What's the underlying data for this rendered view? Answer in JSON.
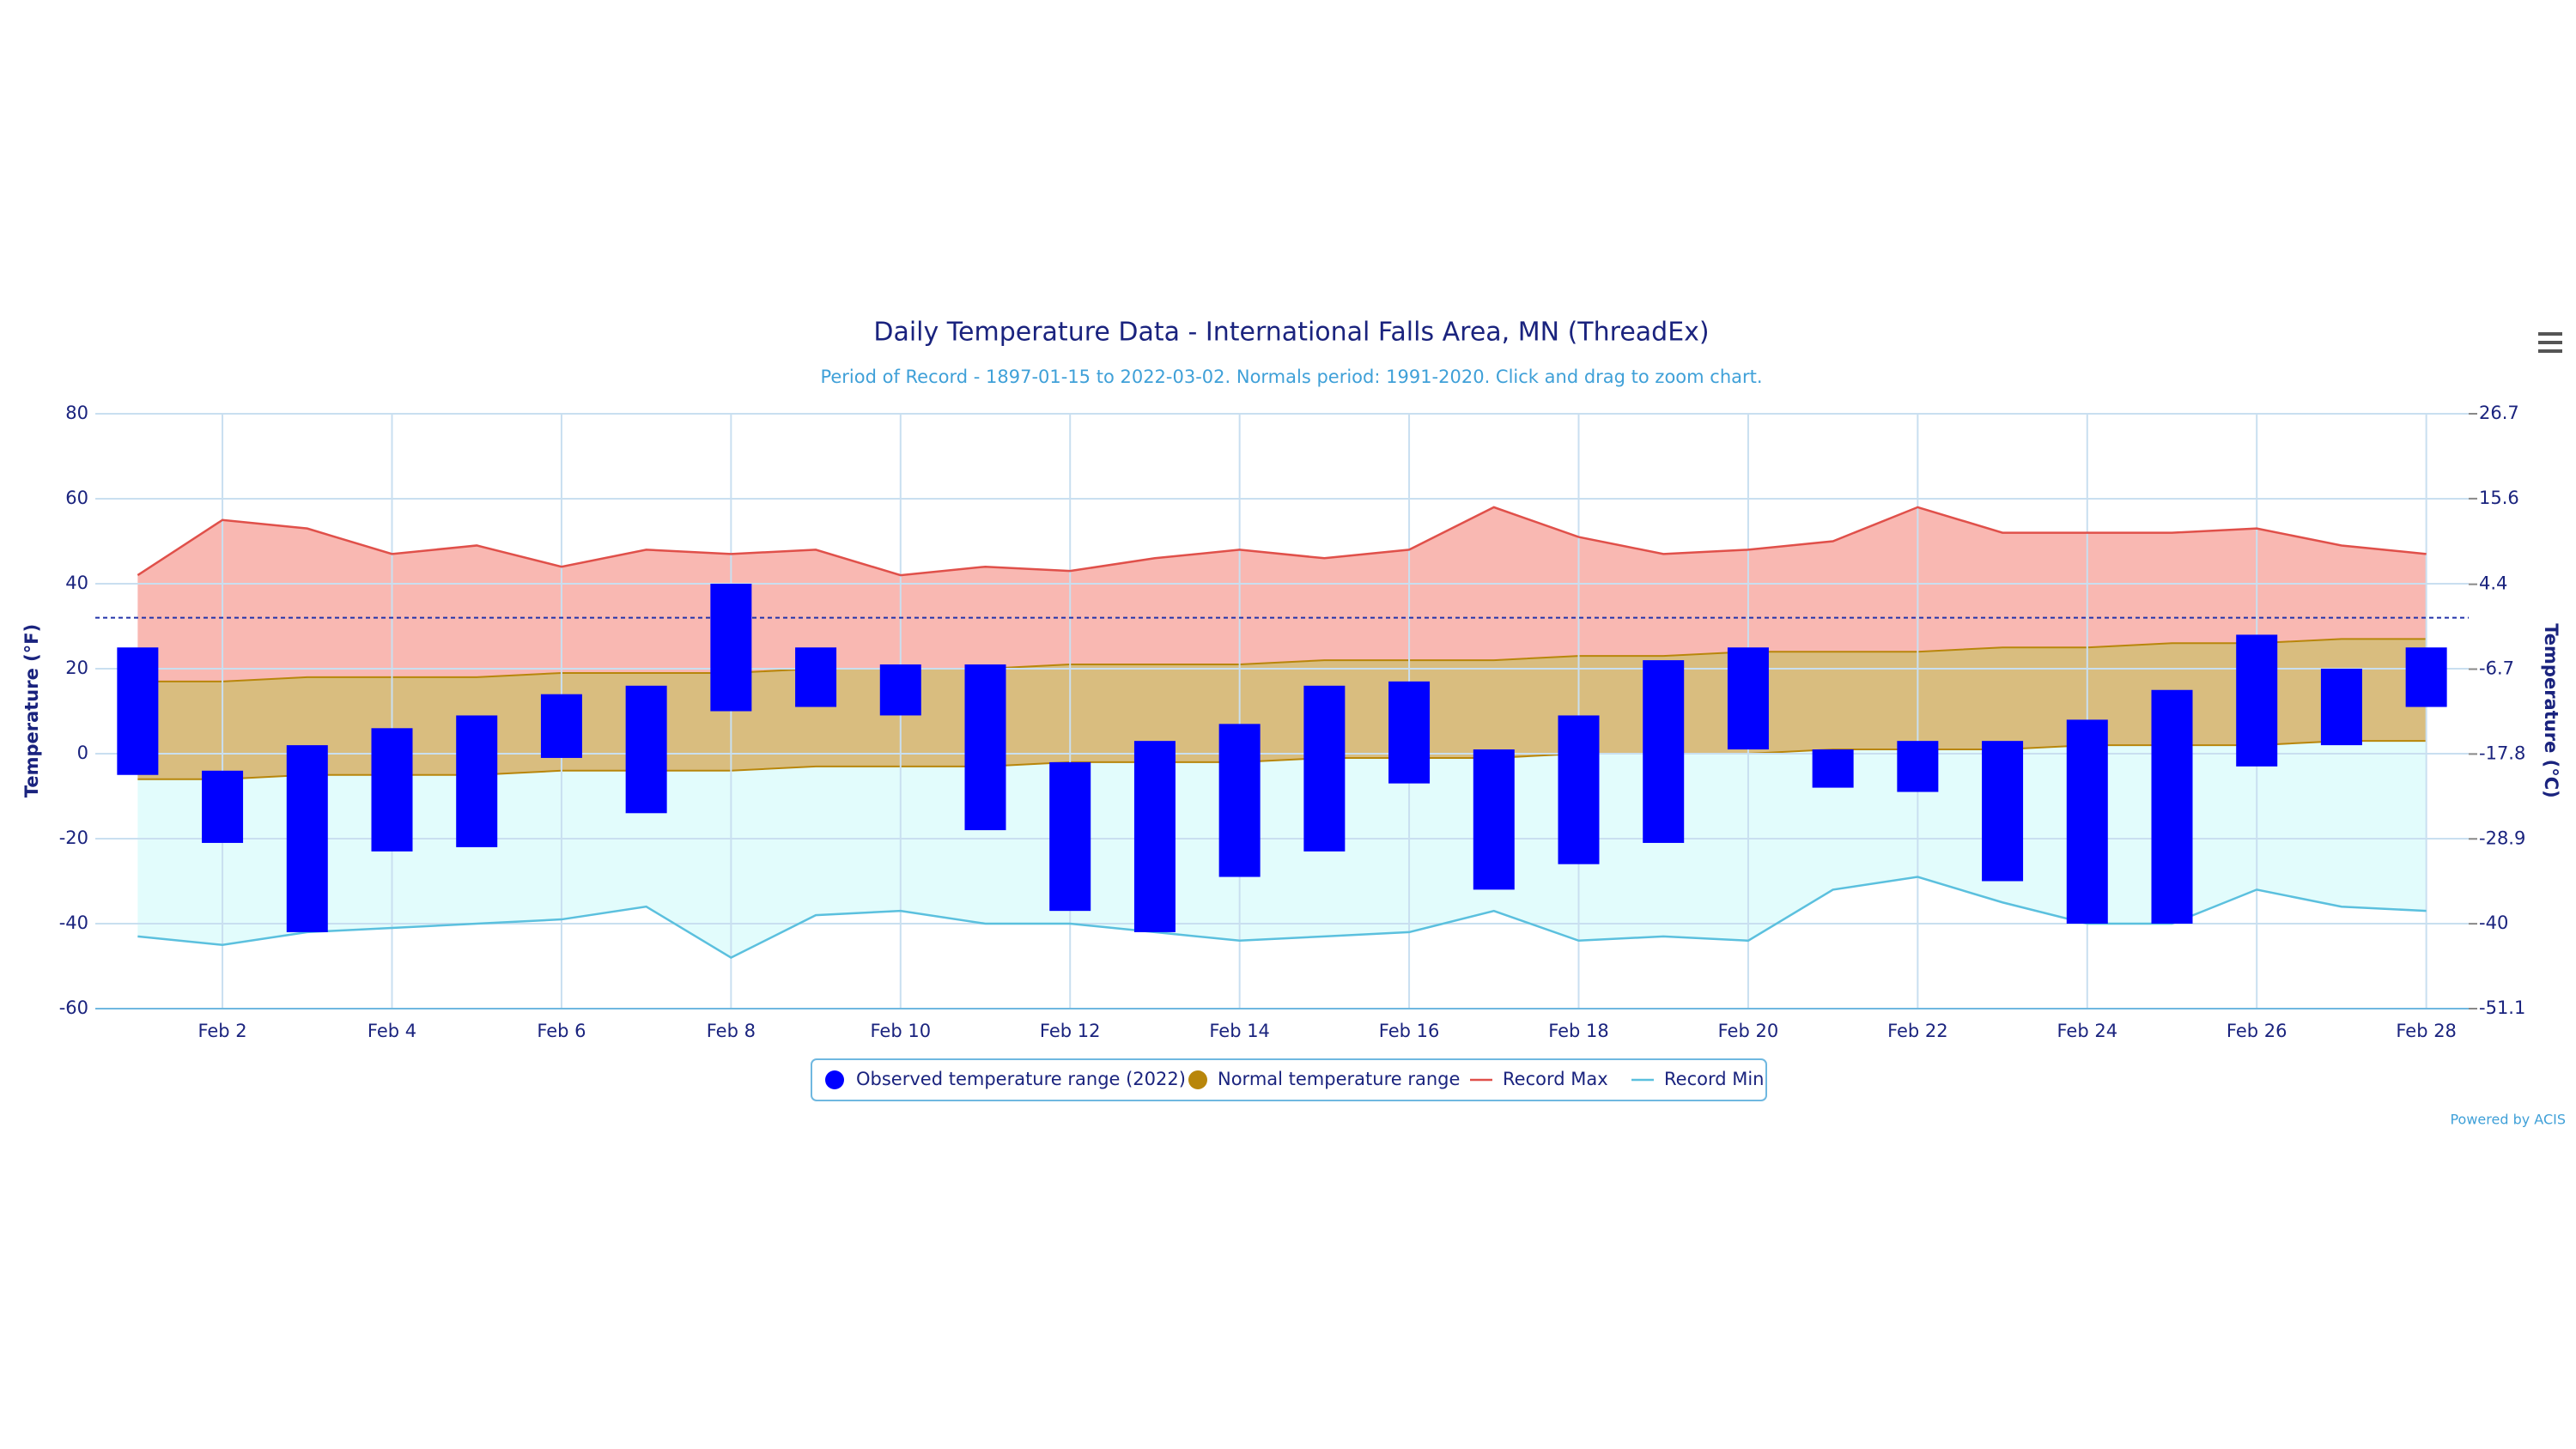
{
  "chart_data": {
    "type": "range_bar",
    "title": "Daily Temperature Data - International Falls Area, MN (ThreadEx)",
    "subtitle": "Period of Record - 1897-01-15 to 2022-03-02. Normals period: 1991-2020. Click and drag to zoom chart.",
    "y_label": "Temperature (°F)",
    "y2_label": "Temperature (°C)",
    "credit": "Powered by ACIS",
    "categories": [
      null,
      "Feb 2",
      null,
      "Feb 4",
      null,
      "Feb 6",
      null,
      "Feb 8",
      null,
      "Feb 10",
      null,
      "Feb 12",
      null,
      "Feb 14",
      null,
      "Feb 16",
      null,
      "Feb 18",
      null,
      "Feb 20",
      null,
      "Feb 22",
      null,
      "Feb 24",
      null,
      "Feb 26",
      null,
      "Feb 28"
    ],
    "ylim": [
      -60,
      80
    ],
    "yticks": [
      -60,
      -40,
      -20,
      0,
      20,
      40,
      60,
      80
    ],
    "y2lim": [
      -51.1,
      26.7
    ],
    "y2ticks": [
      -51.1,
      -40,
      -28.9,
      -17.8,
      -6.7,
      4.4,
      15.6,
      26.7
    ],
    "freezing_line": 32,
    "grid": true,
    "series": [
      {
        "name": "Observed temperature range (2022)",
        "color": "#0000ff",
        "low": [
          -5,
          -21,
          -42,
          -23,
          -22,
          -1,
          -14,
          10,
          11,
          9,
          -18,
          -37,
          -42,
          -29,
          -23,
          -7,
          -32,
          -26,
          -21,
          1,
          -8,
          -9,
          -30,
          -40,
          -40,
          -3,
          2,
          11
        ],
        "high": [
          25,
          -4,
          2,
          6,
          9,
          14,
          16,
          40,
          25,
          21,
          21,
          -2,
          3,
          7,
          16,
          17,
          1,
          9,
          22,
          25,
          1,
          3,
          3,
          8,
          15,
          28,
          20,
          25
        ]
      },
      {
        "name": "Normal temperature range",
        "color": "#b8860b",
        "fill": "#d9bd7f",
        "low": [
          -6,
          -6,
          -5,
          -5,
          -5,
          -4,
          -4,
          -4,
          -3,
          -3,
          -3,
          -2,
          -2,
          -2,
          -1,
          -1,
          -1,
          0,
          0,
          0,
          1,
          1,
          1,
          2,
          2,
          2,
          3,
          3
        ],
        "high": [
          17,
          17,
          18,
          18,
          18,
          19,
          19,
          19,
          20,
          20,
          20,
          21,
          21,
          21,
          22,
          22,
          22,
          23,
          23,
          24,
          24,
          24,
          25,
          25,
          26,
          26,
          27,
          27
        ]
      },
      {
        "name": "Record Max",
        "color": "#e0504a",
        "fill": "#f9b8b2",
        "values": [
          42,
          55,
          53,
          47,
          49,
          44,
          48,
          47,
          48,
          42,
          44,
          43,
          46,
          48,
          46,
          48,
          58,
          51,
          47,
          48,
          50,
          58,
          52,
          52,
          52,
          53,
          49,
          47
        ]
      },
      {
        "name": "Record Min",
        "color": "#5bc0de",
        "fill": "#e2fcfc",
        "values": [
          -43,
          -45,
          -42,
          -41,
          -40,
          -39,
          -36,
          -48,
          -38,
          -37,
          -40,
          -40,
          -42,
          -44,
          -43,
          -42,
          -37,
          -44,
          -43,
          -44,
          -32,
          -29,
          -35,
          -40,
          -40,
          -32,
          -36,
          -37
        ]
      }
    ]
  }
}
